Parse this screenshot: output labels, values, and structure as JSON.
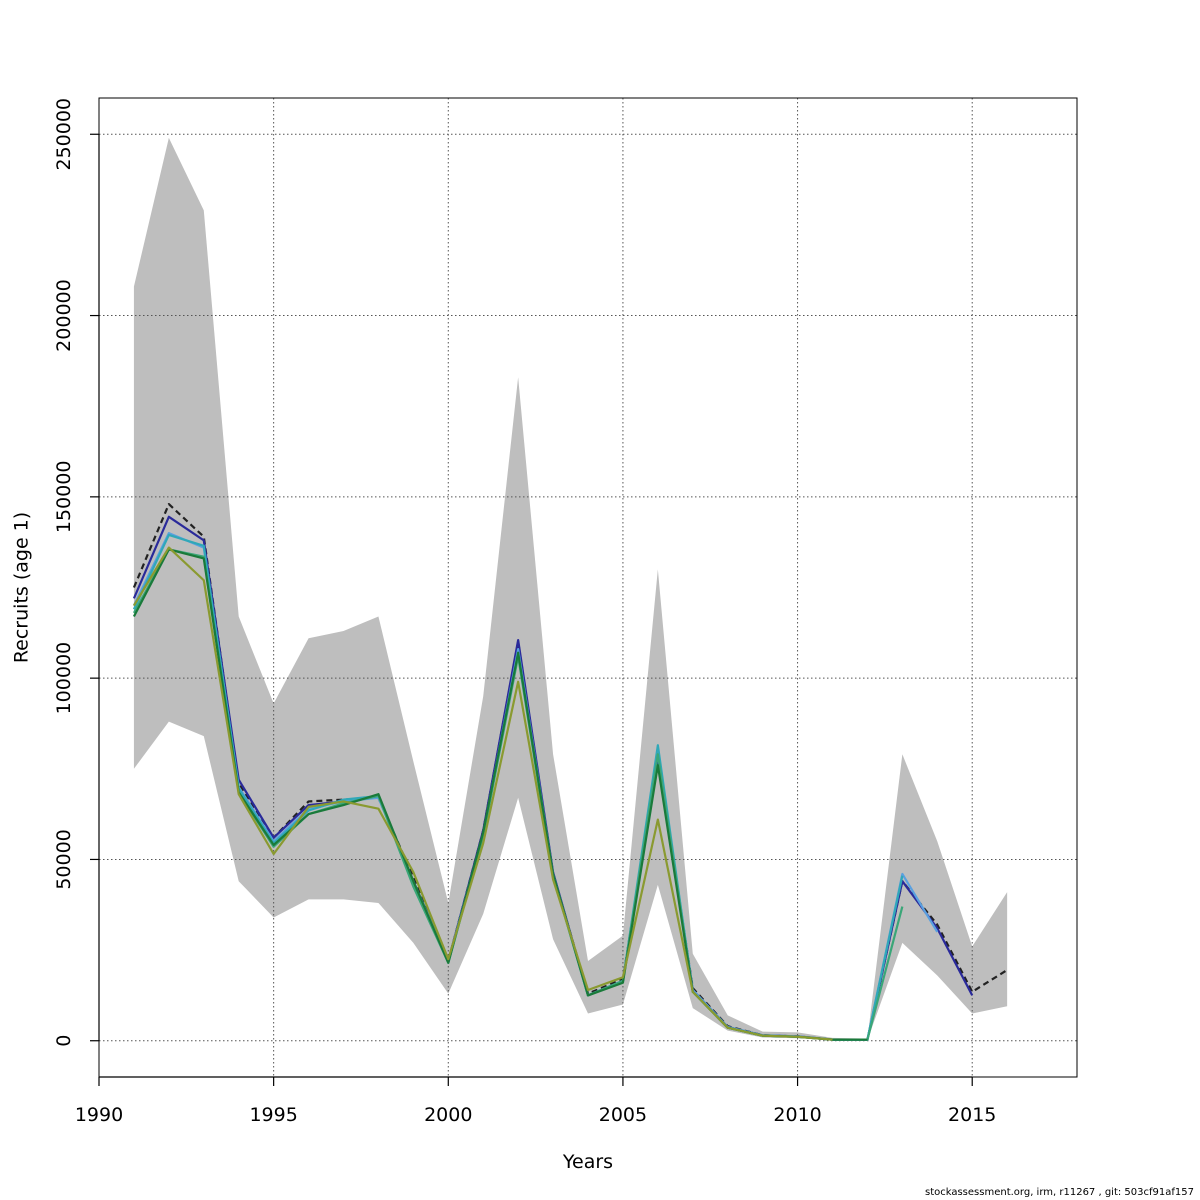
{
  "chart_data": {
    "type": "line",
    "title": "",
    "xlabel": "Years",
    "ylabel": "Recruits (age 1)",
    "xlim": [
      1990,
      2018
    ],
    "ylim": [
      -10000,
      260000
    ],
    "x_ticks": [
      1990,
      1995,
      2000,
      2005,
      2010,
      2015
    ],
    "y_ticks": [
      0,
      50000,
      100000,
      150000,
      200000,
      250000
    ],
    "grid": true,
    "band": {
      "color": "#bebebe",
      "x": [
        1991,
        1992,
        1993,
        1994,
        1995,
        1996,
        1997,
        1998,
        1999,
        2000,
        2001,
        2002,
        2003,
        2004,
        2005,
        2006,
        2007,
        2008,
        2009,
        2010,
        2011,
        2012,
        2013,
        2014,
        2015,
        2016
      ],
      "upper": [
        208000,
        249000,
        229000,
        117000,
        93000,
        111000,
        113000,
        117000,
        77000,
        38000,
        95000,
        183000,
        79000,
        22000,
        29000,
        130000,
        24000,
        7000,
        2500,
        2300,
        800,
        600,
        79000,
        55000,
        26000,
        41000
      ],
      "lower": [
        75000,
        88000,
        84000,
        44000,
        34000,
        39000,
        39000,
        38000,
        27000,
        13000,
        35000,
        67000,
        28000,
        7500,
        10000,
        43000,
        9000,
        2800,
        900,
        700,
        200,
        200,
        27000,
        18000,
        7500,
        9500
      ]
    },
    "series": [
      {
        "color": "#222222",
        "dashed": true,
        "x": [
          1991,
          1992,
          1993,
          1994,
          1995,
          1996,
          1997,
          1998,
          1999,
          2000,
          2001,
          2002,
          2003,
          2004,
          2005,
          2006,
          2007,
          2008,
          2009,
          2010,
          2011,
          2012,
          2013,
          2014,
          2015,
          2016
        ],
        "values": [
          125000,
          148000,
          139000,
          71000,
          56000,
          66000,
          66500,
          67000,
          45000,
          22000,
          58000,
          110000,
          46000,
          13000,
          17000,
          78000,
          14500,
          4000,
          1500,
          1200,
          300,
          300,
          44000,
          32000,
          13500,
          19500
        ]
      },
      {
        "color": "#2a2a9a",
        "dashed": false,
        "x": [
          1991,
          1992,
          1993,
          1994,
          1995,
          1996,
          1997,
          1998,
          1999,
          2000,
          2001,
          2002,
          2003,
          2004,
          2005,
          2006,
          2007,
          2008,
          2009,
          2010,
          2011,
          2012,
          2013,
          2014,
          2015
        ],
        "values": [
          122000,
          144500,
          138000,
          72000,
          56000,
          65000,
          66000,
          67500,
          44000,
          22000,
          58000,
          110500,
          46500,
          12500,
          16500,
          78000,
          14000,
          3800,
          1500,
          1200,
          300,
          300,
          44000,
          31000,
          12500
        ]
      },
      {
        "color": "#5aa0e0",
        "dashed": false,
        "x": [
          1991,
          1992,
          1993,
          1994,
          1995,
          1996,
          1997,
          1998,
          1999,
          2000,
          2001,
          2002,
          2003,
          2004,
          2005,
          2006,
          2007,
          2008,
          2009,
          2010,
          2011,
          2012,
          2013,
          2014
        ],
        "values": [
          120000,
          140000,
          136000,
          70000,
          55000,
          64000,
          66000,
          67000,
          44000,
          22000,
          57000,
          108000,
          46000,
          12500,
          16500,
          80000,
          14000,
          3800,
          1500,
          1200,
          300,
          300,
          46000,
          30000
        ]
      },
      {
        "color": "#30a8b8",
        "dashed": false,
        "x": [
          1991,
          1992,
          1993,
          1994,
          1995,
          1996,
          1997,
          1998,
          1999,
          2000,
          2001,
          2002,
          2003,
          2004,
          2005,
          2006,
          2007,
          2008,
          2009,
          2010,
          2011,
          2012,
          2013
        ],
        "values": [
          119000,
          139500,
          136500,
          69500,
          54500,
          63500,
          66500,
          67500,
          43500,
          21500,
          56500,
          107000,
          45500,
          12500,
          16500,
          81500,
          13500,
          3600,
          1400,
          1100,
          300,
          300,
          45500
        ]
      },
      {
        "color": "#3aa678",
        "dashed": false,
        "x": [
          1991,
          1992,
          1993,
          1994,
          1995,
          1996,
          1997,
          1998,
          1999,
          2000,
          2001,
          2002,
          2003,
          2004,
          2005,
          2006,
          2007,
          2008,
          2009,
          2010,
          2011,
          2012,
          2013
        ],
        "values": [
          118000,
          135500,
          133500,
          68500,
          53500,
          62500,
          65500,
          67500,
          42500,
          21500,
          56500,
          106000,
          45500,
          12500,
          16500,
          79000,
          13500,
          3600,
          1400,
          1100,
          300,
          300,
          37000
        ]
      },
      {
        "color": "#1a7a3a",
        "dashed": false,
        "x": [
          1991,
          1992,
          1993,
          1994,
          1995,
          1996,
          1997,
          1998,
          1999,
          2000,
          2001,
          2002,
          2003,
          2004,
          2005,
          2006,
          2007,
          2008,
          2009,
          2010,
          2011,
          2012
        ],
        "values": [
          117000,
          135500,
          133000,
          68500,
          54000,
          62500,
          65000,
          68000,
          44000,
          21500,
          57500,
          107000,
          46000,
          12500,
          16000,
          76000,
          13500,
          3600,
          1400,
          1100,
          300,
          300
        ]
      },
      {
        "color": "#8a9a30",
        "dashed": false,
        "x": [
          1991,
          1992,
          1993,
          1994,
          1995,
          1996,
          1997,
          1998,
          1999,
          2000,
          2001,
          2002,
          2003,
          2004,
          2005,
          2006,
          2007,
          2008,
          2009,
          2010,
          2011
        ],
        "values": [
          120000,
          136000,
          127000,
          68000,
          51500,
          64500,
          66000,
          64000,
          46500,
          22500,
          54500,
          99000,
          44500,
          14000,
          17500,
          61000,
          13500,
          3600,
          1400,
          1100,
          300
        ]
      }
    ]
  },
  "footer_text": "stockassessment.org, irm, r11267 , git: 503cf91af157"
}
